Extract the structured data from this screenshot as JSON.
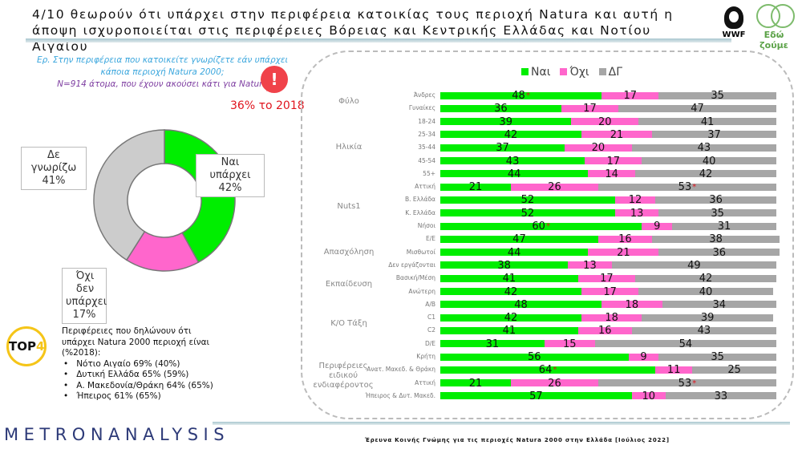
{
  "title": "4/10 θεωρούν ότι υπάρχει στην περιφέρεια κατοικίας τους περιοχή Natura και αυτή η άποψη ισχυροποιείται στις περιφέρειες Βόρειας και Κεντρικής Ελλάδας και Νοτίου Αιγαίου",
  "logos": {
    "wwf": "WWF",
    "edo": "Εδώ ζούμε"
  },
  "question": {
    "line1": "Ερ. Στην περιφέρεια που κατοικείτε γνωρίζετε εάν υπάρχει κάποια περιοχή Natura 2000;",
    "line2": "N=914 άτομα, που έχουν ακούσει κάτι για Natura"
  },
  "alert_icon": "!",
  "note_2018": "36% το 2018",
  "top4": {
    "badge": "TOP",
    "badge_num": "4",
    "heading": "Περιφέρειες που δηλώνουν ότι υπάρχει Natura 2000 περιοχή είναι (%2018):",
    "items": [
      "Νότιο Αιγαίο 69% (40%)",
      "Δυτική Ελλάδα 65% (59%)",
      "Α. Μακεδονία/Θράκη 64% (65%)",
      "Ήπειρος 61% (65%)"
    ]
  },
  "brand": "METRONANALYSIS",
  "footer": "Έρευνα Κοινής Γνώμης για τις περιοχές Natura 2000 στην Ελλάδα [Ιούλιος 2022]",
  "colors": {
    "yes": "#00ee00",
    "no": "#ff66cc",
    "dk": "#a6a6a6",
    "donut_dk": "#cccccc"
  },
  "chart_data": [
    {
      "type": "pie",
      "title": "",
      "slices": [
        {
          "label": "Ναι υπάρχει",
          "value": 42,
          "text": "42%"
        },
        {
          "label": "Όχι δεν υπάρχει",
          "value": 17,
          "text": "17%"
        },
        {
          "label": "Δε γνωρίζω",
          "value": 41,
          "text": "41%"
        }
      ]
    },
    {
      "type": "bar",
      "stacked": true,
      "orientation": "horizontal",
      "legend": [
        "Ναι",
        "Όχι",
        "ΔΓ"
      ],
      "legend_position": "top",
      "groups": [
        {
          "name": "Φύλο",
          "rows": [
            0,
            1
          ]
        },
        {
          "name": "Ηλικία",
          "rows": [
            2,
            3,
            4,
            5,
            6
          ]
        },
        {
          "name": "Nuts1",
          "rows": [
            7,
            8,
            9,
            10
          ]
        },
        {
          "name": "Απασχόληση",
          "rows": [
            11,
            12,
            13
          ]
        },
        {
          "name": "Εκπαίδευση",
          "rows": [
            14,
            15
          ]
        },
        {
          "name": "Κ/Ο Τάξη",
          "rows": [
            16,
            17,
            18,
            19
          ]
        },
        {
          "name": "Περιφέρειες ειδικού ενδιαφέροντος",
          "rows": [
            20,
            21,
            22,
            23
          ]
        }
      ],
      "categories": [
        "Άνδρες",
        "Γυναίκες",
        "18-24",
        "25-34",
        "35-44",
        "45-54",
        "55+",
        "Αττική",
        "Β. Ελλάδα",
        "Κ. Ελλάδα",
        "Νήσοι",
        "Ε/Ε",
        "Μισθωτοί",
        "Δεν εργάζονται",
        "Βασική/Μέση",
        "Ανώτερη",
        "Α/Β",
        "C1",
        "C2",
        "D/E",
        "Κρήτη",
        "Ανατ. Μακεδ. & Θράκη",
        "Αττική",
        "Ήπειρος & Δυτ. Μακεδ."
      ],
      "series": [
        {
          "name": "Ναι",
          "values": [
            48,
            36,
            39,
            42,
            37,
            43,
            44,
            21,
            52,
            52,
            60,
            47,
            44,
            38,
            41,
            42,
            48,
            42,
            41,
            31,
            56,
            64,
            21,
            57
          ]
        },
        {
          "name": "Όχι",
          "values": [
            17,
            17,
            20,
            21,
            20,
            17,
            14,
            26,
            12,
            13,
            9,
            16,
            21,
            13,
            17,
            17,
            18,
            18,
            16,
            15,
            9,
            11,
            26,
            10
          ]
        },
        {
          "name": "ΔΓ",
          "values": [
            35,
            47,
            41,
            37,
            43,
            40,
            42,
            53,
            36,
            35,
            31,
            38,
            36,
            49,
            42,
            40,
            34,
            39,
            43,
            54,
            35,
            25,
            53,
            33
          ]
        }
      ],
      "significant": [
        {
          "row": 0,
          "series": 0
        },
        {
          "row": 7,
          "series": 2
        },
        {
          "row": 10,
          "series": 0
        },
        {
          "row": 21,
          "series": 0
        },
        {
          "row": 22,
          "series": 2
        }
      ],
      "significance_mark": "*",
      "xlim": [
        0,
        100
      ]
    }
  ]
}
